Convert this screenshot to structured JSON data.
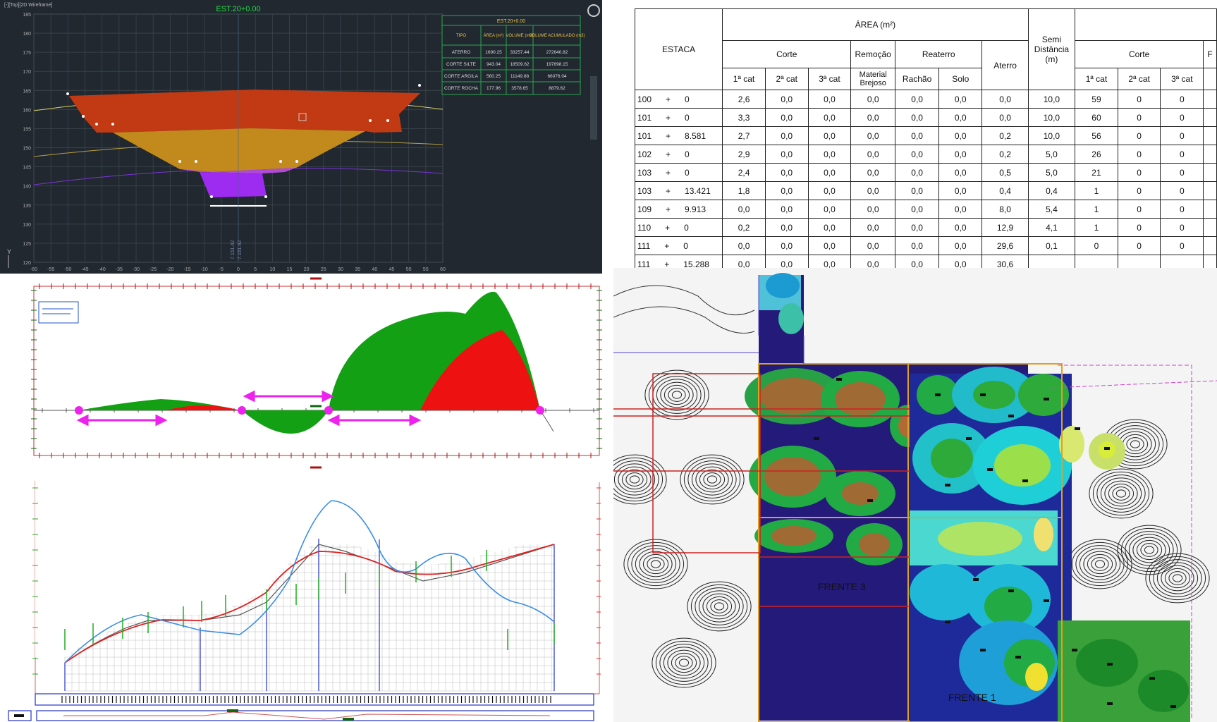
{
  "cad_section": {
    "viewport_label": "[-][Top][2D Wireframe]",
    "title": "EST.20+0.00",
    "legend_title": "EST.20+0.00",
    "legend_headers": [
      "TIPO",
      "ÁREA (m²)",
      "VOLUME (m3)",
      "VOLUME ACUMULADO (m3)"
    ],
    "legend_rows": [
      [
        "ATERRO",
        "1690.25",
        "33257.44",
        "272640.82"
      ],
      [
        "CORTE SILTE",
        "943.04",
        "18509.62",
        "197898.15"
      ],
      [
        "CORTE ARGILA",
        "560.25",
        "11149.88",
        "66076.04"
      ],
      [
        "CORTE ROCHA",
        "177.96",
        "3578.65",
        "8879.62"
      ]
    ],
    "y_ticks": [
      "185",
      "180",
      "175",
      "170",
      "165",
      "160",
      "155",
      "150",
      "145",
      "140",
      "135",
      "130",
      "125",
      "120"
    ],
    "x_ticks": [
      "-60",
      "-55",
      "-50",
      "-45",
      "-40",
      "-35",
      "-30",
      "-25",
      "-20",
      "-15",
      "-10",
      "-5",
      "0",
      "5",
      "10",
      "15",
      "20",
      "25",
      "30",
      "35",
      "40",
      "45",
      "50",
      "55",
      "60"
    ],
    "center_label_1": "7.151.42",
    "center_label_2": "7.151.92",
    "layer_colors": {
      "aterro": "#c23a14",
      "silte": "#c28a1c",
      "argila": "#b04bd8",
      "rocha": "#8a2be2"
    }
  },
  "area_table": {
    "headers": {
      "estaca": "ESTACA",
      "area": "ÁREA (m²)",
      "corte": "Corte",
      "remocao": "Remoção",
      "reaterro": "Reaterro",
      "aterro": "Aterro",
      "semi": "Semi Distância (m)",
      "corte2": "Corte",
      "cat1": "1ª cat",
      "cat2": "2ª cat",
      "cat3": "3ª cat",
      "material": "Material Brejoso",
      "rachao": "Rachão",
      "solo": "Solo",
      "cat1b": "1ª cat",
      "cat2b": "2ª cat",
      "cat3b": "3ª cat",
      "cut_r": "F"
    },
    "rows": [
      {
        "est": "100",
        "plus": "+",
        "sub": "0",
        "c1": "2,6",
        "c2": "0,0",
        "c3": "0,0",
        "rem": "0,0",
        "rac": "0,0",
        "solo": "0,0",
        "ater": "0,0",
        "semi": "10,0",
        "v1": "59",
        "v2": "0",
        "v3": "0"
      },
      {
        "est": "101",
        "plus": "+",
        "sub": "0",
        "c1": "3,3",
        "c2": "0,0",
        "c3": "0,0",
        "rem": "0,0",
        "rac": "0,0",
        "solo": "0,0",
        "ater": "0,0",
        "semi": "10,0",
        "v1": "60",
        "v2": "0",
        "v3": "0"
      },
      {
        "est": "101",
        "plus": "+",
        "sub": "8.581",
        "c1": "2,7",
        "c2": "0,0",
        "c3": "0,0",
        "rem": "0,0",
        "rac": "0,0",
        "solo": "0,0",
        "ater": "0,2",
        "semi": "10,0",
        "v1": "56",
        "v2": "0",
        "v3": "0"
      },
      {
        "est": "102",
        "plus": "+",
        "sub": "0",
        "c1": "2,9",
        "c2": "0,0",
        "c3": "0,0",
        "rem": "0,0",
        "rac": "0,0",
        "solo": "0,0",
        "ater": "0,2",
        "semi": "5,0",
        "v1": "26",
        "v2": "0",
        "v3": "0"
      },
      {
        "est": "103",
        "plus": "+",
        "sub": "0",
        "c1": "2,4",
        "c2": "0,0",
        "c3": "0,0",
        "rem": "0,0",
        "rac": "0,0",
        "solo": "0,0",
        "ater": "0,5",
        "semi": "5,0",
        "v1": "21",
        "v2": "0",
        "v3": "0"
      },
      {
        "est": "103",
        "plus": "+",
        "sub": "13.421",
        "c1": "1,8",
        "c2": "0,0",
        "c3": "0,0",
        "rem": "0,0",
        "rac": "0,0",
        "solo": "0,0",
        "ater": "0,4",
        "semi": "0,4",
        "v1": "1",
        "v2": "0",
        "v3": "0"
      },
      {
        "est": "109",
        "plus": "+",
        "sub": "9.913",
        "c1": "0,0",
        "c2": "0,0",
        "c3": "0,0",
        "rem": "0,0",
        "rac": "0,0",
        "solo": "0,0",
        "ater": "8,0",
        "semi": "5,4",
        "v1": "1",
        "v2": "0",
        "v3": "0"
      },
      {
        "est": "110",
        "plus": "+",
        "sub": "0",
        "c1": "0,2",
        "c2": "0,0",
        "c3": "0,0",
        "rem": "0,0",
        "rac": "0,0",
        "solo": "0,0",
        "ater": "12,9",
        "semi": "4,1",
        "v1": "1",
        "v2": "0",
        "v3": "0"
      },
      {
        "est": "111",
        "plus": "+",
        "sub": "0",
        "c1": "0,0",
        "c2": "0,0",
        "c3": "0,0",
        "rem": "0,0",
        "rac": "0,0",
        "solo": "0,0",
        "ater": "29,6",
        "semi": "0,1",
        "v1": "0",
        "v2": "0",
        "v3": "0"
      },
      {
        "est": "111",
        "plus": "+",
        "sub": "15.288",
        "c1": "0,0",
        "c2": "0,0",
        "c3": "0,0",
        "rem": "0,0",
        "rac": "0,0",
        "solo": "0,0",
        "ater": "30,6",
        "semi": "",
        "v1": "",
        "v2": "",
        "v3": ""
      }
    ]
  },
  "map": {
    "label_frente3": "FRENTE 3",
    "label_frente1": "FRENTE 1"
  },
  "colors": {
    "mass_green": "#14a014",
    "mass_red": "#ee1111",
    "arrow_magenta": "#ee22ee",
    "profile_blue": "#3a8ee6",
    "profile_red": "#e02020"
  }
}
